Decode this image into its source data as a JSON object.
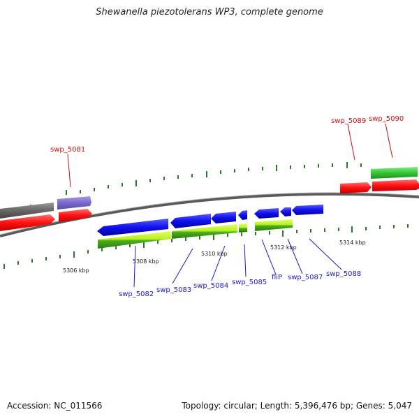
{
  "title": "Shewanella piezotolerans WP3, complete genome",
  "footer": {
    "accession": "Accession: NC_011566",
    "summary": "Topology: circular; Length: 5,396,476 bp; Genes: 5,047"
  },
  "colors": {
    "forward_cds": "#ff2020",
    "reverse_cds": "#1010ee",
    "gray_feature": "#666666",
    "purple_feature": "#7a6acb",
    "green_feature": "#34c734",
    "yellow_green_feature": "#b8f020",
    "tick": "#2a7a2a",
    "backbone": "#777777",
    "top_label": "#cc1111",
    "bottom_label": "#1a1acc"
  },
  "scale_labels": [
    "5306 kbp",
    "5308 kbp",
    "5310 kbp",
    "5312 kbp",
    "5314 kbp"
  ],
  "top_gene_labels": [
    "swp_5081",
    "swp_5089",
    "swp_5090"
  ],
  "bottom_gene_labels": [
    "swp_5082",
    "swp_5083",
    "swp_5084",
    "swp_5085",
    "fliP",
    "swp_5087",
    "swp_5088"
  ]
}
